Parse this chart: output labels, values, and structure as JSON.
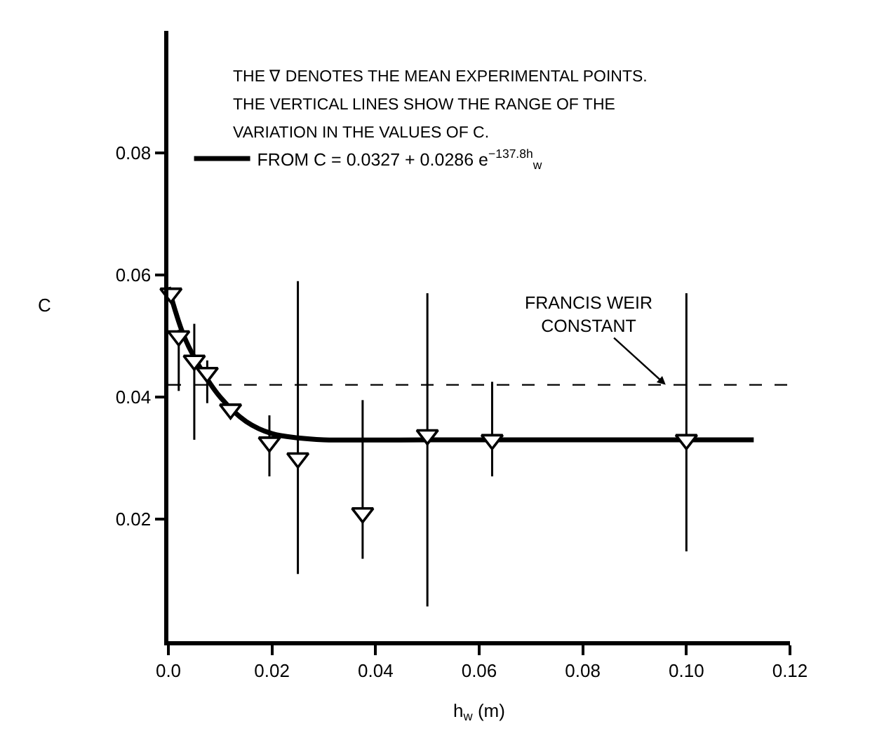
{
  "chart_data": {
    "type": "scatter",
    "xlabel": "h$_{w}$ (m)",
    "ylabel": "C",
    "xlim": [
      0,
      0.12
    ],
    "xticks": [
      {
        "value": 0,
        "label": "0.0"
      },
      0.02,
      0.04,
      0.06,
      0.08,
      {
        "value": 0.1,
        "label": "0.10"
      },
      0.12
    ],
    "ylim": [
      0,
      0.1
    ],
    "yticks": [
      0.02,
      0.04,
      0.06,
      0.08
    ],
    "grid": false,
    "legend": "top",
    "annotations": [
      "THE ∇ DENOTES THE MEAN EXPERIMENTAL POINTS.",
      "THE VERTICAL LINES SHOW THE RANGE OF THE",
      "VARIATION IN THE VALUES OF C.",
      {
        "text": "FRANCIS WEIR\nCONSTANT",
        "x": 0.096,
        "y": 0.042
      }
    ],
    "ref_lines": [
      {
        "axis": "y",
        "value": 0.042,
        "line_style": "dashed",
        "color": "#000000"
      }
    ],
    "series": [
      {
        "marker": "triangle",
        "color": "#000000",
        "x": [
          0.0005,
          0.002,
          0.005,
          0.0075,
          0.012,
          0.0195,
          0.025,
          0.0375,
          0.05,
          0.0625,
          0.1
        ],
        "values": [
          0.057,
          0.05,
          0.046,
          0.044,
          0.038,
          0.0326,
          0.03,
          0.021,
          0.0338,
          0.033,
          0.033
        ],
        "errors": [
          null,
          [
            0.041,
            0.051
          ],
          [
            0.033,
            0.052
          ],
          [
            0.039,
            0.046
          ],
          null,
          [
            0.027,
            0.037
          ],
          [
            0.011,
            0.059
          ],
          [
            0.0135,
            0.0395
          ],
          [
            0.0057,
            0.057
          ],
          [
            0.027,
            0.0425
          ],
          [
            0.0147,
            0.057
          ]
        ]
      },
      {
        "type": "line",
        "name": "FROM C = 0.0327 + 0.0286 e$^{−137.8h}$$_{w}$",
        "color": "#000000",
        "line_style": "solid",
        "x": [
          0,
          0.003,
          0.006,
          0.01,
          0.015,
          0.02,
          0.025,
          0.03,
          0.05,
          0.08,
          0.113
        ],
        "values": [
          0.058,
          0.05,
          0.045,
          0.04,
          0.036,
          0.034,
          0.0333,
          0.033,
          0.033,
          0.033,
          0.033
        ]
      }
    ]
  }
}
